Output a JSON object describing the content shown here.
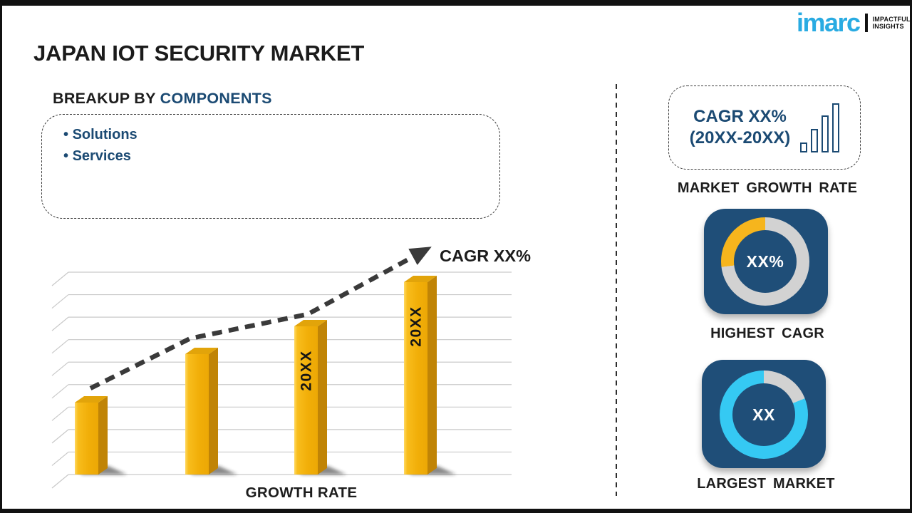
{
  "page_title": "JAPAN IOT SECURITY MARKET",
  "logo": {
    "brand": "imarc",
    "tagline1": "IMPACTFUL",
    "tagline2": "INSIGHTS",
    "brand_color": "#29abe2"
  },
  "breakup": {
    "heading_prefix": "BREAKUP BY ",
    "heading_highlight": "COMPONENTS",
    "items": [
      "Solutions",
      "Services"
    ]
  },
  "chart_data": {
    "type": "bar",
    "title": "",
    "xlabel": "GROWTH RATE",
    "ylabel": "",
    "categories": [
      "",
      "",
      "20XX",
      "20XX"
    ],
    "values": [
      101,
      169,
      208,
      270
    ],
    "bar_labels": [
      "",
      "",
      "20XX",
      "20XX"
    ],
    "trend_label": "CAGR XX%",
    "trend_style": "dashed-arrow",
    "gridlines": 10,
    "legend_position": "none",
    "bar_color": "#f1ae08",
    "bar_side_color": "#c08406",
    "bar_top_color": "#e2a40a",
    "grid_color": "#c9c9c9",
    "trend_color": "#3a3a3a"
  },
  "right_panel": {
    "market_growth_rate": {
      "box_line1": "CAGR XX%",
      "box_line2": "(20XX-20XX)",
      "caption": "MARKET GROWTH RATE",
      "icon": "ascending-bars-icon"
    },
    "highest_cagr": {
      "value": "XX%",
      "caption": "HIGHEST CAGR",
      "ring": {
        "highlight_color": "#f6b51d",
        "base_color": "#d2d2d2",
        "highlight_percent": 27
      }
    },
    "largest_market": {
      "value": "XX",
      "caption": "LARGEST MARKET",
      "ring": {
        "highlight_color": "#35c9f3",
        "base_color": "#d2d2d2",
        "highlight_percent": 81
      }
    }
  },
  "colors": {
    "navy": "#1b4a73",
    "tile_navy": "#1f4e78",
    "gold": "#f1ae08",
    "cyan": "#35c9f3",
    "ring_gray": "#d2d2d2"
  }
}
